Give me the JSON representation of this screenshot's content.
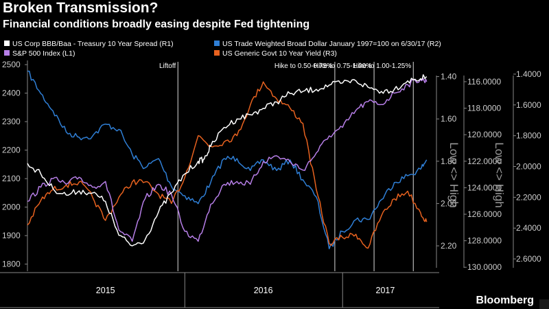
{
  "header": {
    "title": "Broken Transmission?",
    "subtitle": "Financial conditions broadly easing despite Fed tightening"
  },
  "brand": "Bloomberg",
  "colors": {
    "background": "#000000",
    "white_series": "#ffffff",
    "blue_series": "#2f7fd6",
    "purple_series": "#b77fe8",
    "orange_series": "#e8621f"
  },
  "chart_data": {
    "type": "line",
    "legend_placement": "top-left",
    "grid": false,
    "x_labels": [
      "2015",
      "2016",
      "2017"
    ],
    "events": [
      {
        "label": "Liftoff",
        "date": "2015-12-16"
      },
      {
        "label": "Hike to 0.50-0.75%",
        "date": "2016-12-14"
      },
      {
        "label": "Hike to 0.75-1.00%",
        "date": "2017-03-15"
      },
      {
        "label": "Hike to 1.00-1.25%",
        "date": "2017-06-14"
      }
    ],
    "axes": {
      "L1": {
        "ticks": [
          "2500",
          "2400",
          "2300",
          "2200",
          "2100",
          "2000",
          "1900",
          "1800"
        ],
        "ylim": [
          1775,
          2510
        ]
      },
      "R1": {
        "ticks": [
          "1.40",
          "1.60",
          "1.80",
          "2.00",
          "2.20"
        ],
        "label": "Low <> High",
        "ylim": [
          1.33,
          2.32
        ],
        "inverted": true
      },
      "R2": {
        "ticks": [
          "116.0000",
          "118.0000",
          "120.0000",
          "122.0000",
          "124.0000",
          "126.0000",
          "128.0000",
          "130.0000"
        ],
        "label": "Low <> High",
        "ylim": [
          114.5,
          130.3
        ],
        "inverted": true
      },
      "R3": {
        "ticks": [
          "1.4000",
          "1.6000",
          "1.8000",
          "2.0000",
          "2.2000",
          "2.4000",
          "2.6000"
        ],
        "ylim": [
          1.32,
          2.68
        ],
        "inverted": true
      }
    },
    "series": [
      {
        "name": "US Corp BBB/Baa - Treasury 10 Year Spread (R1)",
        "axis": "R1",
        "color": "#ffffff",
        "x": [
          "2015-01-01",
          "2015-02-01",
          "2015-03-01",
          "2015-04-01",
          "2015-05-01",
          "2015-06-01",
          "2015-07-01",
          "2015-08-01",
          "2015-09-01",
          "2015-10-01",
          "2015-11-01",
          "2015-12-01",
          "2016-01-01",
          "2016-02-01",
          "2016-02-15",
          "2016-03-01",
          "2016-04-01",
          "2016-05-01",
          "2016-06-01",
          "2016-07-01",
          "2016-08-01",
          "2016-09-01",
          "2016-10-01",
          "2016-11-01",
          "2016-12-01",
          "2017-01-01",
          "2017-02-01",
          "2017-03-01",
          "2017-04-01",
          "2017-05-01",
          "2017-06-01",
          "2017-07-01",
          "2017-07-15"
        ],
        "values": [
          1.81,
          1.86,
          1.93,
          1.96,
          1.94,
          1.95,
          1.99,
          2.15,
          2.2,
          2.17,
          2.04,
          1.95,
          1.86,
          1.8,
          1.79,
          1.73,
          1.64,
          1.6,
          1.58,
          1.55,
          1.52,
          1.48,
          1.47,
          1.46,
          1.44,
          1.43,
          1.42,
          1.45,
          1.47,
          1.46,
          1.42,
          1.41,
          1.4
        ]
      },
      {
        "name": "US Trade Weighted Broad Dollar January 1997=100 on 6/30/17 (R2)",
        "axis": "R2",
        "color": "#2f7fd6",
        "x": [
          "2015-01-01",
          "2015-02-01",
          "2015-03-01",
          "2015-04-01",
          "2015-05-01",
          "2015-06-01",
          "2015-07-01",
          "2015-08-01",
          "2015-09-01",
          "2015-10-01",
          "2015-11-01",
          "2015-12-01",
          "2016-01-01",
          "2016-02-01",
          "2016-03-01",
          "2016-04-01",
          "2016-05-01",
          "2016-06-01",
          "2016-07-01",
          "2016-08-01",
          "2016-09-01",
          "2016-10-01",
          "2016-11-01",
          "2016-12-01",
          "2017-01-01",
          "2017-02-01",
          "2017-03-01",
          "2017-04-01",
          "2017-05-01",
          "2017-06-01",
          "2017-07-01",
          "2017-07-15"
        ],
        "values": [
          115.2,
          116.9,
          118.2,
          119.8,
          120.2,
          120.1,
          119.2,
          119.6,
          121.5,
          122.5,
          121.8,
          123.9,
          124.6,
          125.2,
          123.6,
          121.8,
          121.8,
          122.7,
          121.9,
          122.7,
          121.9,
          123.4,
          124.7,
          128.6,
          127.3,
          126.4,
          126.4,
          124.9,
          123.6,
          123.1,
          122.6,
          121.9
        ]
      },
      {
        "name": "S&P 500 Index (L1)",
        "axis": "L1",
        "color": "#b77fe8",
        "x": [
          "2015-01-01",
          "2015-02-01",
          "2015-03-01",
          "2015-04-01",
          "2015-05-01",
          "2015-06-01",
          "2015-07-01",
          "2015-08-01",
          "2015-09-01",
          "2015-10-01",
          "2015-11-01",
          "2015-12-01",
          "2016-01-01",
          "2016-02-01",
          "2016-03-01",
          "2016-04-01",
          "2016-05-01",
          "2016-06-01",
          "2016-07-01",
          "2016-08-01",
          "2016-09-01",
          "2016-10-01",
          "2016-11-01",
          "2016-12-01",
          "2017-01-01",
          "2017-02-01",
          "2017-03-01",
          "2017-04-01",
          "2017-05-01",
          "2017-06-01",
          "2017-07-01",
          "2017-07-15"
        ],
        "values": [
          2020,
          2070,
          2100,
          2080,
          2105,
          2070,
          2090,
          1920,
          1880,
          2030,
          2080,
          2045,
          1915,
          1880,
          2010,
          2080,
          2090,
          2080,
          2160,
          2180,
          2160,
          2130,
          2190,
          2250,
          2280,
          2340,
          2370,
          2360,
          2400,
          2430,
          2450,
          2440
        ]
      },
      {
        "name": "US Generic Govt 10 Year Yield (R3)",
        "axis": "R3",
        "color": "#e8621f",
        "x": [
          "2015-01-01",
          "2015-02-01",
          "2015-03-01",
          "2015-04-01",
          "2015-05-01",
          "2015-06-01",
          "2015-07-01",
          "2015-08-01",
          "2015-09-01",
          "2015-10-01",
          "2015-11-01",
          "2015-12-01",
          "2016-01-01",
          "2016-02-01",
          "2016-03-01",
          "2016-04-01",
          "2016-05-01",
          "2016-06-01",
          "2016-07-01",
          "2016-08-01",
          "2016-09-01",
          "2016-10-01",
          "2016-11-01",
          "2016-12-01",
          "2017-01-01",
          "2017-02-01",
          "2017-03-01",
          "2017-04-01",
          "2017-05-01",
          "2017-06-01",
          "2017-07-01",
          "2017-07-15"
        ],
        "values": [
          2.38,
          2.22,
          2.15,
          2.12,
          2.1,
          2.2,
          2.35,
          2.2,
          2.1,
          2.1,
          2.18,
          2.24,
          2.07,
          1.8,
          1.87,
          1.84,
          1.8,
          1.6,
          1.45,
          1.56,
          1.62,
          1.72,
          2.15,
          2.5,
          2.46,
          2.44,
          2.53,
          2.32,
          2.21,
          2.16,
          2.3,
          2.36
        ]
      }
    ]
  }
}
